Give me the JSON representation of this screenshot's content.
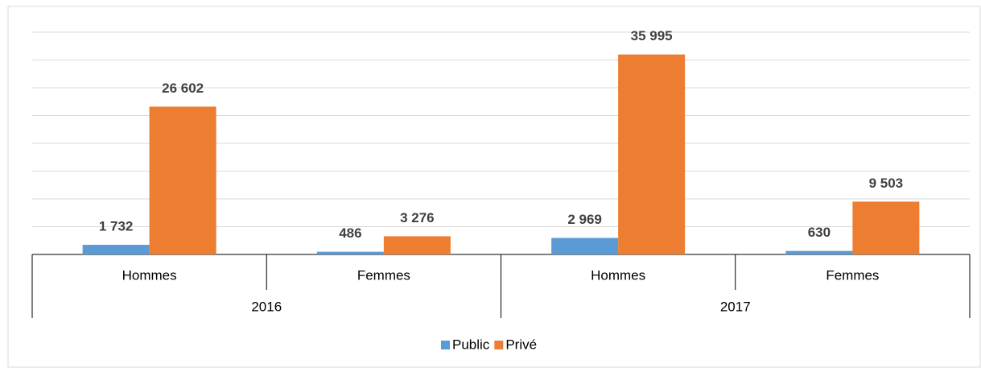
{
  "chart_data": {
    "type": "bar",
    "categories": [
      "Hommes",
      "Femmes",
      "Hommes",
      "Femmes"
    ],
    "groups": [
      "2016",
      "2017"
    ],
    "series": [
      {
        "name": "Public",
        "color": "#5b9bd5",
        "values": [
          1732,
          486,
          2969,
          630
        ],
        "value_labels": [
          "1 732",
          "486",
          "2 969",
          "630"
        ]
      },
      {
        "name": "Privé",
        "color": "#ed7d31",
        "values": [
          26602,
          3276,
          35995,
          9503
        ],
        "value_labels": [
          "26 602",
          "3 276",
          "35 995",
          "9 503"
        ]
      }
    ],
    "ylim": [
      0,
      40000
    ],
    "yticks": [
      0,
      5000,
      10000,
      15000,
      20000,
      25000,
      30000,
      35000,
      40000
    ],
    "grid": true,
    "legend": "bottom"
  }
}
